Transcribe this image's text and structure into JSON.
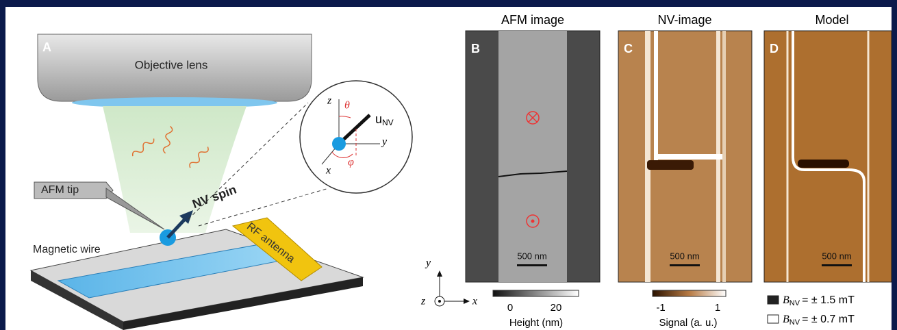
{
  "panel_a": {
    "label": "A",
    "objective_lens": "Objective lens",
    "afm_tip": "AFM tip",
    "nv_spin": "NV spin",
    "magnetic_wire": "Magnetic wire",
    "rf_antenna": "RF antenna",
    "inset": {
      "z": "z",
      "theta": "θ",
      "u": "u",
      "u_sub": "NV",
      "y": "y",
      "x": "x",
      "phi": "φ"
    }
  },
  "panel_b": {
    "title": "AFM image",
    "label": "B",
    "scale_bar": "500 nm",
    "colorbar": {
      "ticks": [
        "0",
        "20"
      ],
      "label": "Height (nm)"
    }
  },
  "axes": {
    "y": "y",
    "z": "z",
    "x": "x"
  },
  "panel_c": {
    "title": "NV-image",
    "label": "C",
    "scale_bar": "500 nm",
    "colorbar": {
      "ticks": [
        "-1",
        "1"
      ],
      "label": "Signal (a. u.)"
    }
  },
  "panel_d": {
    "title": "Model",
    "label": "D",
    "scale_bar": "500 nm",
    "legend": [
      {
        "symbol": "B",
        "subscript": "NV",
        "text": "= ± 1.5 mT"
      },
      {
        "symbol": "B",
        "subscript": "NV",
        "text": "= ± 0.7 mT"
      }
    ]
  }
}
